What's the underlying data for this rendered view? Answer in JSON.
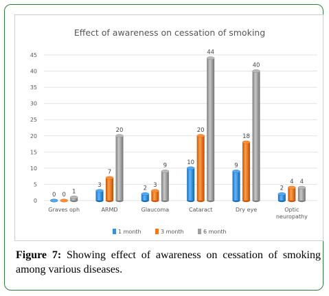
{
  "caption": {
    "label": "Figure 7:",
    "text": " Showing effect of awareness on cessation of smoking among various diseases."
  },
  "chart_data": {
    "type": "bar",
    "title": "Effect of awareness on cessation of smoking",
    "categories": [
      "Graves oph",
      "ARMD",
      "Glaucoma",
      "Cataract",
      "Dry eye",
      "Optic neuropathy"
    ],
    "series": [
      {
        "name": "1 month",
        "values": [
          0,
          3,
          2,
          10,
          9,
          2
        ],
        "color": "#3a8fd9"
      },
      {
        "name": "3 month",
        "values": [
          0,
          7,
          3,
          20,
          18,
          4
        ],
        "color": "#ee7722"
      },
      {
        "name": "6 month",
        "values": [
          1,
          20,
          9,
          44,
          40,
          4
        ],
        "color": "#a0a0a0"
      }
    ],
    "ylim": [
      0,
      45
    ],
    "yticks": [
      0,
      5,
      10,
      15,
      20,
      25,
      30,
      35,
      40,
      45
    ],
    "grid": true,
    "legend_position": "bottom",
    "style": "3d-cylinder"
  }
}
